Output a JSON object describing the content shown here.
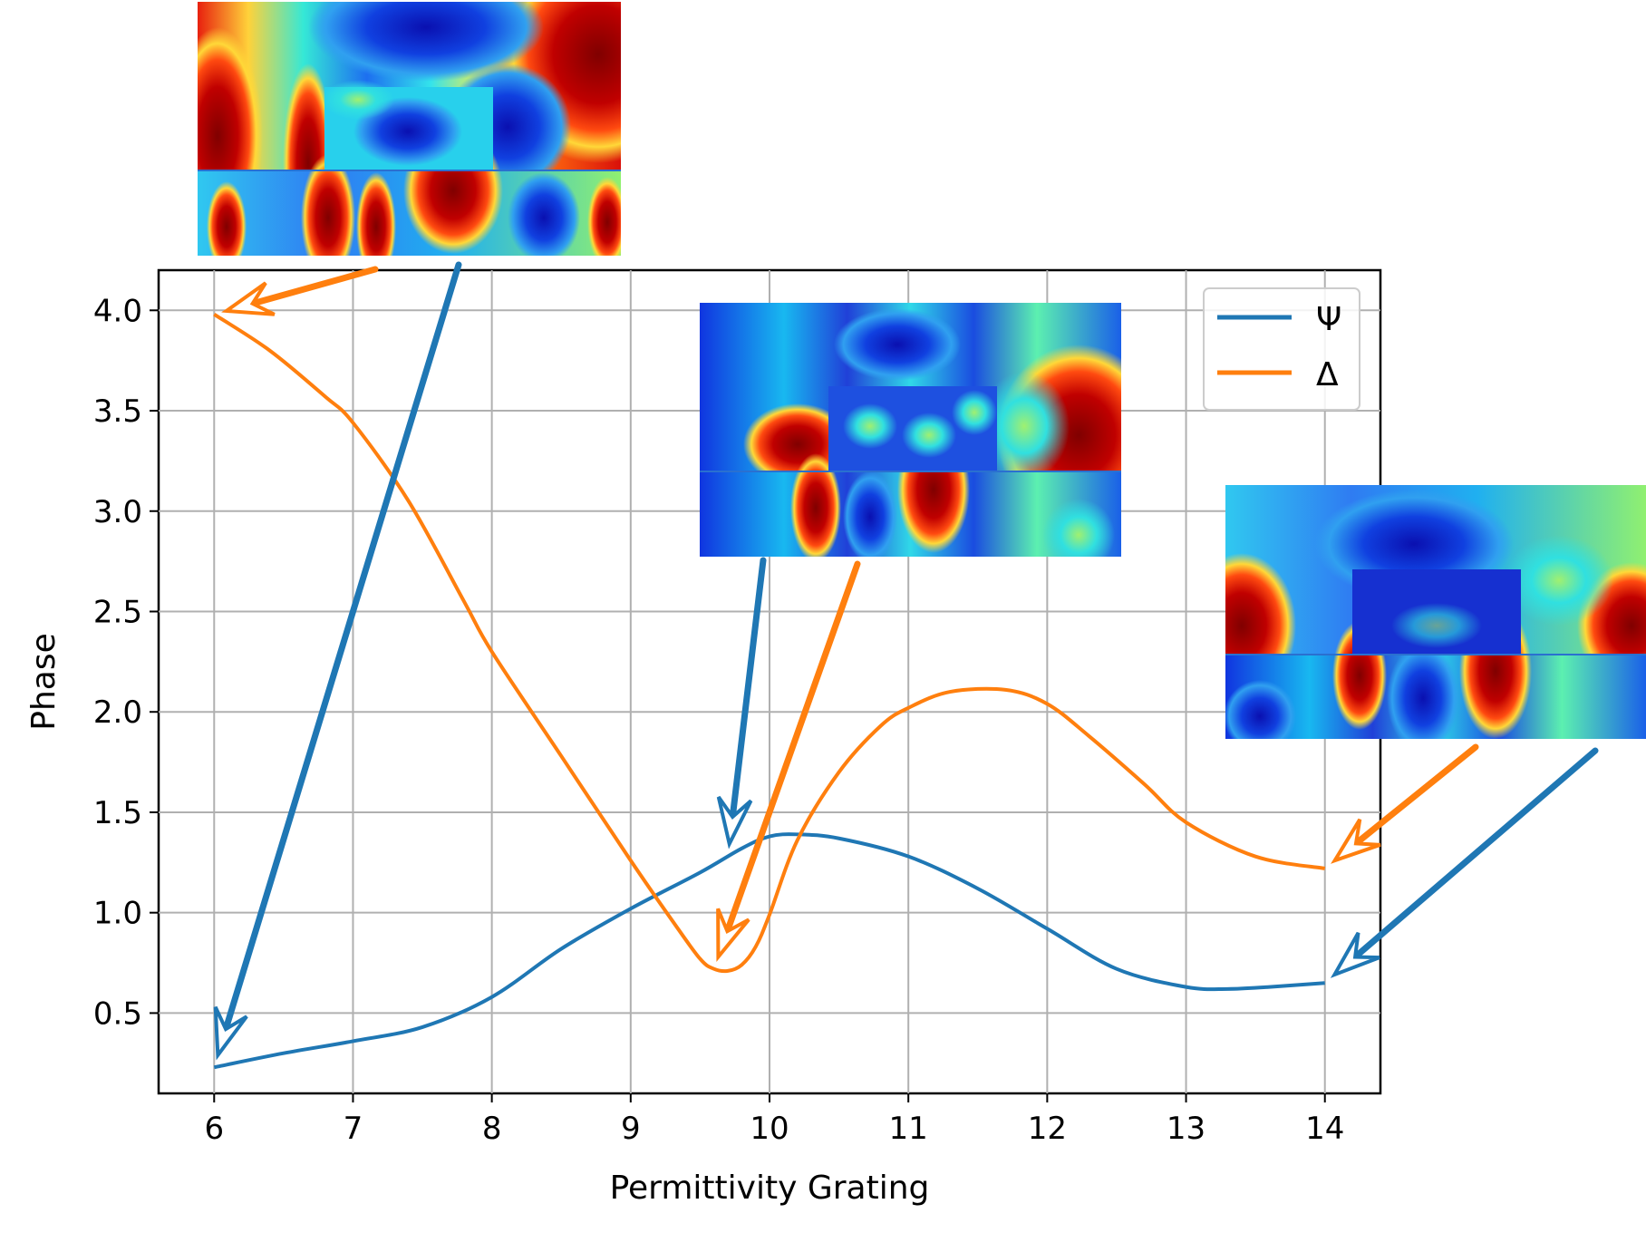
{
  "chart_data": {
    "type": "line",
    "title": "",
    "xlabel": "Permittivity Grating",
    "ylabel": "Phase",
    "xlim": [
      5.6,
      14.4
    ],
    "ylim": [
      0.1,
      4.2
    ],
    "xticks": [
      6,
      7,
      8,
      9,
      10,
      11,
      12,
      13,
      14
    ],
    "xtick_labels": [
      "6",
      "7",
      "8",
      "9",
      "10",
      "11",
      "12",
      "13",
      "14"
    ],
    "yticks": [
      0.5,
      1.0,
      1.5,
      2.0,
      2.5,
      3.0,
      3.5,
      4.0
    ],
    "ytick_labels": [
      "0.5",
      "1.0",
      "1.5",
      "2.0",
      "2.5",
      "3.0",
      "3.5",
      "4.0"
    ],
    "grid": true,
    "legend": "top-right",
    "series": [
      {
        "name": "Ψ",
        "color": "#1f77b4",
        "x": [
          6.0,
          6.5,
          7.0,
          7.5,
          8.0,
          8.5,
          9.0,
          9.5,
          9.8,
          10.0,
          10.2,
          10.5,
          11.0,
          11.5,
          12.0,
          12.5,
          13.0,
          13.3,
          13.6,
          14.0
        ],
        "y": [
          0.23,
          0.3,
          0.36,
          0.43,
          0.58,
          0.82,
          1.02,
          1.2,
          1.32,
          1.38,
          1.39,
          1.37,
          1.28,
          1.12,
          0.92,
          0.72,
          0.63,
          0.62,
          0.63,
          0.65
        ]
      },
      {
        "name": "Δ",
        "color": "#ff7f0e",
        "x": [
          6.0,
          6.4,
          6.8,
          7.0,
          7.4,
          7.8,
          8.0,
          8.5,
          9.0,
          9.3,
          9.5,
          9.6,
          9.7,
          9.8,
          9.9,
          10.0,
          10.2,
          10.5,
          10.8,
          11.0,
          11.3,
          11.7,
          12.0,
          12.3,
          12.7,
          13.0,
          13.5,
          14.0
        ],
        "y": [
          3.98,
          3.8,
          3.57,
          3.44,
          3.05,
          2.55,
          2.3,
          1.78,
          1.26,
          0.96,
          0.77,
          0.72,
          0.71,
          0.74,
          0.83,
          0.99,
          1.36,
          1.7,
          1.93,
          2.02,
          2.1,
          2.11,
          2.04,
          1.88,
          1.64,
          1.45,
          1.28,
          1.22
        ]
      }
    ]
  },
  "insets": [
    {
      "name": "field-map-eps6",
      "points_to": [
        {
          "series": "Δ",
          "x": 6.0
        },
        {
          "series": "Ψ",
          "x": 6.0
        }
      ]
    },
    {
      "name": "field-map-eps10",
      "points_to": [
        {
          "series": "Ψ",
          "x": 9.7
        },
        {
          "series": "Δ",
          "x": 9.6
        }
      ]
    },
    {
      "name": "field-map-eps14",
      "points_to": [
        {
          "series": "Δ",
          "x": 14.0
        },
        {
          "series": "Ψ",
          "x": 14.0
        }
      ]
    }
  ]
}
